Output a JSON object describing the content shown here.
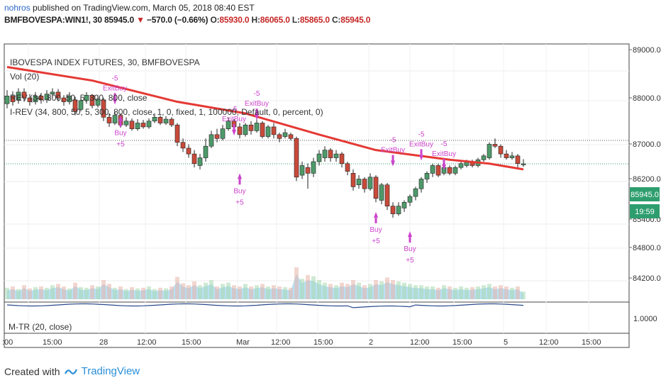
{
  "header": {
    "user": "nohros",
    "published": "published on TradingView.com, March 05, 2018 08:40 EST",
    "symbol": "BMFBOVESPA:WIN1!, 30",
    "last": "85945.0",
    "change": "−570.0 (−0.66%)",
    "o_label": "O:",
    "o_value": "85930.0",
    "h_label": "H:",
    "h_value": "86065.0",
    "l_label": "L:",
    "l_value": "85865.0",
    "c_label": "C:",
    "c_value": "85945.0"
  },
  "legend": {
    "title": "IBOVESPA INDEX FUTURES, 30, BMFBOVESPA",
    "vol": "Vol (20)",
    "rev1": "REV (34, 800, 50, 5, 300, 800, close",
    "rev2": "I-REV (34, 800, 50, 5, 300, 800, close, 1, 0, fixed, 1, 100000, Default, 0, percent, 0)",
    "subpane": "M-TR (20, close)"
  },
  "price_axis": {
    "ticks": [
      "89000.0",
      "88000.0",
      "87000.0",
      "86200.0",
      "85400.0",
      "84800.0",
      "84200.0"
    ],
    "last_price": "85945.0",
    "timer": "19:59",
    "subpane_tick": "1.0000"
  },
  "time_axis": {
    "labels": [
      ":00",
      "15:00",
      "28",
      "12:00",
      "15:00",
      "Mar",
      "12:00",
      "15:00",
      "2",
      "12:00",
      "15:00",
      "5",
      "12:00",
      "15:00"
    ]
  },
  "signals": {
    "buy": "Buy",
    "exit_buy": "ExitBuy",
    "plus5": "+5",
    "minus5": "-5"
  },
  "colors": {
    "up": "#4e9a6a",
    "down": "#c94a3a",
    "ma": "#e53935",
    "vol_area": "#7fc8ea",
    "signal": "#cc44cc",
    "axis_bg": "#ffffff"
  },
  "footer": {
    "created": "Created with",
    "brand": "TradingView"
  },
  "chart_data": {
    "type": "candlestick",
    "symbol": "BMFBOVESPA:WIN1!",
    "interval": "30",
    "ylim": [
      83900,
      89200
    ],
    "candles": [
      {
        "o": 87500,
        "c": 87700,
        "h": 87850,
        "l": 87380
      },
      {
        "o": 87700,
        "c": 87550,
        "h": 87820,
        "l": 87450
      },
      {
        "o": 87600,
        "c": 87800,
        "h": 87900,
        "l": 87500
      },
      {
        "o": 87800,
        "c": 87650,
        "h": 87900,
        "l": 87550
      },
      {
        "o": 87650,
        "c": 87550,
        "h": 87750,
        "l": 87450
      },
      {
        "o": 87550,
        "c": 87700,
        "h": 87800,
        "l": 87480
      },
      {
        "o": 87700,
        "c": 87600,
        "h": 87780,
        "l": 87500
      },
      {
        "o": 87600,
        "c": 87750,
        "h": 87850,
        "l": 87520
      },
      {
        "o": 87750,
        "c": 87800,
        "h": 87900,
        "l": 87650
      },
      {
        "o": 87800,
        "c": 87650,
        "h": 87880,
        "l": 87560
      },
      {
        "o": 87650,
        "c": 87550,
        "h": 87720,
        "l": 87450
      },
      {
        "o": 87550,
        "c": 87700,
        "h": 87800,
        "l": 87480
      },
      {
        "o": 87600,
        "c": 87300,
        "h": 87680,
        "l": 87200
      },
      {
        "o": 87350,
        "c": 87580,
        "h": 87700,
        "l": 87300
      },
      {
        "o": 87580,
        "c": 87720,
        "h": 87800,
        "l": 87500
      },
      {
        "o": 87720,
        "c": 87450,
        "h": 87750,
        "l": 87380
      },
      {
        "o": 87460,
        "c": 87620,
        "h": 87720,
        "l": 87400
      },
      {
        "o": 87600,
        "c": 87150,
        "h": 87650,
        "l": 87050
      },
      {
        "o": 87150,
        "c": 87000,
        "h": 87250,
        "l": 86900
      },
      {
        "o": 87000,
        "c": 87200,
        "h": 87300,
        "l": 86950
      },
      {
        "o": 87200,
        "c": 86950,
        "h": 87250,
        "l": 86880
      },
      {
        "o": 86950,
        "c": 87050,
        "h": 87150,
        "l": 86900
      },
      {
        "o": 87050,
        "c": 86850,
        "h": 87120,
        "l": 86800
      },
      {
        "o": 86850,
        "c": 87000,
        "h": 87100,
        "l": 86800
      },
      {
        "o": 87000,
        "c": 86900,
        "h": 87080,
        "l": 86850
      },
      {
        "o": 86900,
        "c": 87050,
        "h": 87120,
        "l": 86850
      },
      {
        "o": 87050,
        "c": 87150,
        "h": 87250,
        "l": 87000
      },
      {
        "o": 87150,
        "c": 87000,
        "h": 87200,
        "l": 86950
      },
      {
        "o": 87000,
        "c": 87100,
        "h": 87180,
        "l": 86950
      },
      {
        "o": 87100,
        "c": 86950,
        "h": 87150,
        "l": 86900
      },
      {
        "o": 86950,
        "c": 86500,
        "h": 87000,
        "l": 86400
      },
      {
        "o": 86500,
        "c": 86350,
        "h": 86600,
        "l": 86250
      },
      {
        "o": 86350,
        "c": 86200,
        "h": 86450,
        "l": 86100
      },
      {
        "o": 86200,
        "c": 85950,
        "h": 86300,
        "l": 85850
      },
      {
        "o": 85900,
        "c": 86100,
        "h": 86200,
        "l": 85800
      },
      {
        "o": 86100,
        "c": 86400,
        "h": 86600,
        "l": 86000
      },
      {
        "o": 86400,
        "c": 86700,
        "h": 86800,
        "l": 86350
      },
      {
        "o": 86700,
        "c": 86600,
        "h": 86850,
        "l": 86500
      },
      {
        "o": 86600,
        "c": 86850,
        "h": 86950,
        "l": 86550
      },
      {
        "o": 86850,
        "c": 87050,
        "h": 87150,
        "l": 86800
      },
      {
        "o": 87050,
        "c": 86900,
        "h": 87100,
        "l": 86800
      },
      {
        "o": 86900,
        "c": 86700,
        "h": 87000,
        "l": 86600
      },
      {
        "o": 86700,
        "c": 86950,
        "h": 87000,
        "l": 86650
      },
      {
        "o": 86950,
        "c": 86800,
        "h": 87050,
        "l": 86700
      },
      {
        "o": 86800,
        "c": 87000,
        "h": 87100,
        "l": 86750
      },
      {
        "o": 87000,
        "c": 86650,
        "h": 87050,
        "l": 86600
      },
      {
        "o": 86650,
        "c": 86900,
        "h": 86950,
        "l": 86600
      },
      {
        "o": 86900,
        "c": 86700,
        "h": 87000,
        "l": 86600
      },
      {
        "o": 86700,
        "c": 86600,
        "h": 86750,
        "l": 86500
      },
      {
        "o": 86650,
        "c": 86750,
        "h": 86850,
        "l": 86600
      },
      {
        "o": 86700,
        "c": 86600,
        "h": 86750,
        "l": 86550
      },
      {
        "o": 86600,
        "c": 85600,
        "h": 86650,
        "l": 85500
      },
      {
        "o": 85650,
        "c": 85900,
        "h": 86000,
        "l": 85550
      },
      {
        "o": 85850,
        "c": 85700,
        "h": 85950,
        "l": 85300
      },
      {
        "o": 85700,
        "c": 86000,
        "h": 86100,
        "l": 85600
      },
      {
        "o": 86000,
        "c": 86200,
        "h": 86300,
        "l": 85900
      },
      {
        "o": 86100,
        "c": 86300,
        "h": 86400,
        "l": 86000
      },
      {
        "o": 86300,
        "c": 86100,
        "h": 86350,
        "l": 86000
      },
      {
        "o": 86100,
        "c": 86200,
        "h": 86300,
        "l": 86000
      },
      {
        "o": 86200,
        "c": 85950,
        "h": 86250,
        "l": 85850
      },
      {
        "o": 85950,
        "c": 85750,
        "h": 86000,
        "l": 85650
      },
      {
        "o": 85700,
        "c": 85350,
        "h": 85800,
        "l": 85250
      },
      {
        "o": 85400,
        "c": 85550,
        "h": 85650,
        "l": 85300
      },
      {
        "o": 85550,
        "c": 85300,
        "h": 85600,
        "l": 85200
      },
      {
        "o": 85300,
        "c": 85600,
        "h": 85700,
        "l": 85250
      },
      {
        "o": 85600,
        "c": 85050,
        "h": 85650,
        "l": 84950
      },
      {
        "o": 85000,
        "c": 85400,
        "h": 85450,
        "l": 84900
      },
      {
        "o": 85400,
        "c": 84850,
        "h": 85450,
        "l": 84750
      },
      {
        "o": 84850,
        "c": 84650,
        "h": 84950,
        "l": 84550
      },
      {
        "o": 84650,
        "c": 84850,
        "h": 84950,
        "l": 84600
      },
      {
        "o": 84800,
        "c": 84950,
        "h": 85000,
        "l": 84700
      },
      {
        "o": 84950,
        "c": 85100,
        "h": 85150,
        "l": 84850
      },
      {
        "o": 85100,
        "c": 85300,
        "h": 85350,
        "l": 85000
      },
      {
        "o": 85300,
        "c": 85550,
        "h": 85600,
        "l": 85200
      },
      {
        "o": 85550,
        "c": 85700,
        "h": 85750,
        "l": 85450
      },
      {
        "o": 85700,
        "c": 85900,
        "h": 85950,
        "l": 85600
      },
      {
        "o": 85900,
        "c": 85650,
        "h": 85950,
        "l": 85600
      },
      {
        "o": 85700,
        "c": 85850,
        "h": 85900,
        "l": 85650
      },
      {
        "o": 85850,
        "c": 85700,
        "h": 85900,
        "l": 85650
      },
      {
        "o": 85700,
        "c": 85850,
        "h": 85900,
        "l": 85650
      },
      {
        "o": 85850,
        "c": 85950,
        "h": 86000,
        "l": 85800
      },
      {
        "o": 85900,
        "c": 86000,
        "h": 86050,
        "l": 85850
      },
      {
        "o": 86000,
        "c": 85900,
        "h": 86050,
        "l": 85850
      },
      {
        "o": 85900,
        "c": 86050,
        "h": 86100,
        "l": 85850
      },
      {
        "o": 86050,
        "c": 86150,
        "h": 86200,
        "l": 86000
      },
      {
        "o": 86100,
        "c": 86450,
        "h": 86500,
        "l": 86050
      },
      {
        "o": 86450,
        "c": 86400,
        "h": 86600,
        "l": 86350
      },
      {
        "o": 86400,
        "c": 86200,
        "h": 86450,
        "l": 86100
      },
      {
        "o": 86200,
        "c": 86100,
        "h": 86300,
        "l": 86050
      },
      {
        "o": 86100,
        "c": 86150,
        "h": 86250,
        "l": 86050
      },
      {
        "o": 86150,
        "c": 85950,
        "h": 86200,
        "l": 85850
      },
      {
        "o": 85930,
        "c": 85945,
        "h": 86065,
        "l": 85865
      }
    ],
    "volume": [
      0.18,
      0.2,
      0.16,
      0.22,
      0.17,
      0.19,
      0.2,
      0.18,
      0.22,
      0.24,
      0.2,
      0.17,
      0.26,
      0.19,
      0.18,
      0.22,
      0.2,
      0.3,
      0.24,
      0.18,
      0.2,
      0.16,
      0.19,
      0.17,
      0.18,
      0.2,
      0.16,
      0.18,
      0.17,
      0.2,
      0.35,
      0.25,
      0.22,
      0.28,
      0.22,
      0.26,
      0.3,
      0.2,
      0.24,
      0.26,
      0.22,
      0.2,
      0.24,
      0.2,
      0.22,
      0.24,
      0.2,
      0.22,
      0.2,
      0.19,
      0.18,
      0.5,
      0.32,
      0.38,
      0.36,
      0.3,
      0.26,
      0.24,
      0.22,
      0.26,
      0.24,
      0.3,
      0.26,
      0.22,
      0.24,
      0.3,
      0.28,
      0.34,
      0.3,
      0.28,
      0.26,
      0.24,
      0.22,
      0.22,
      0.2,
      0.2,
      0.18,
      0.22,
      0.2,
      0.18,
      0.2,
      0.18,
      0.19,
      0.2,
      0.22,
      0.24,
      0.2,
      0.22,
      0.2,
      0.18,
      0.2,
      0.12
    ],
    "ma": [
      [
        0,
        88450
      ],
      [
        15,
        88100
      ],
      [
        30,
        87550
      ],
      [
        42,
        87250
      ],
      [
        55,
        86700
      ],
      [
        65,
        86300
      ],
      [
        78,
        86050
      ],
      [
        85,
        85950
      ],
      [
        91,
        85800
      ]
    ],
    "last_price": 85945,
    "dotted_level": 86550,
    "signals": [
      {
        "type": "exitbuy",
        "i": 19,
        "price": 87700
      },
      {
        "type": "buy",
        "i": 20,
        "price": 87200
      },
      {
        "type": "exitbuy",
        "i": 40,
        "price": 86900
      },
      {
        "type": "buy",
        "i": 41,
        "price": 85700
      },
      {
        "type": "exitbuy",
        "i": 44,
        "price": 87300
      },
      {
        "type": "buy",
        "i": 65,
        "price": 84700
      },
      {
        "type": "exitbuy",
        "i": 68,
        "price": 86100
      },
      {
        "type": "buy",
        "i": 71,
        "price": 84200
      },
      {
        "type": "exitbuy",
        "i": 73,
        "price": 86250
      },
      {
        "type": "exitbuy",
        "i": 77,
        "price": 86000
      }
    ]
  }
}
